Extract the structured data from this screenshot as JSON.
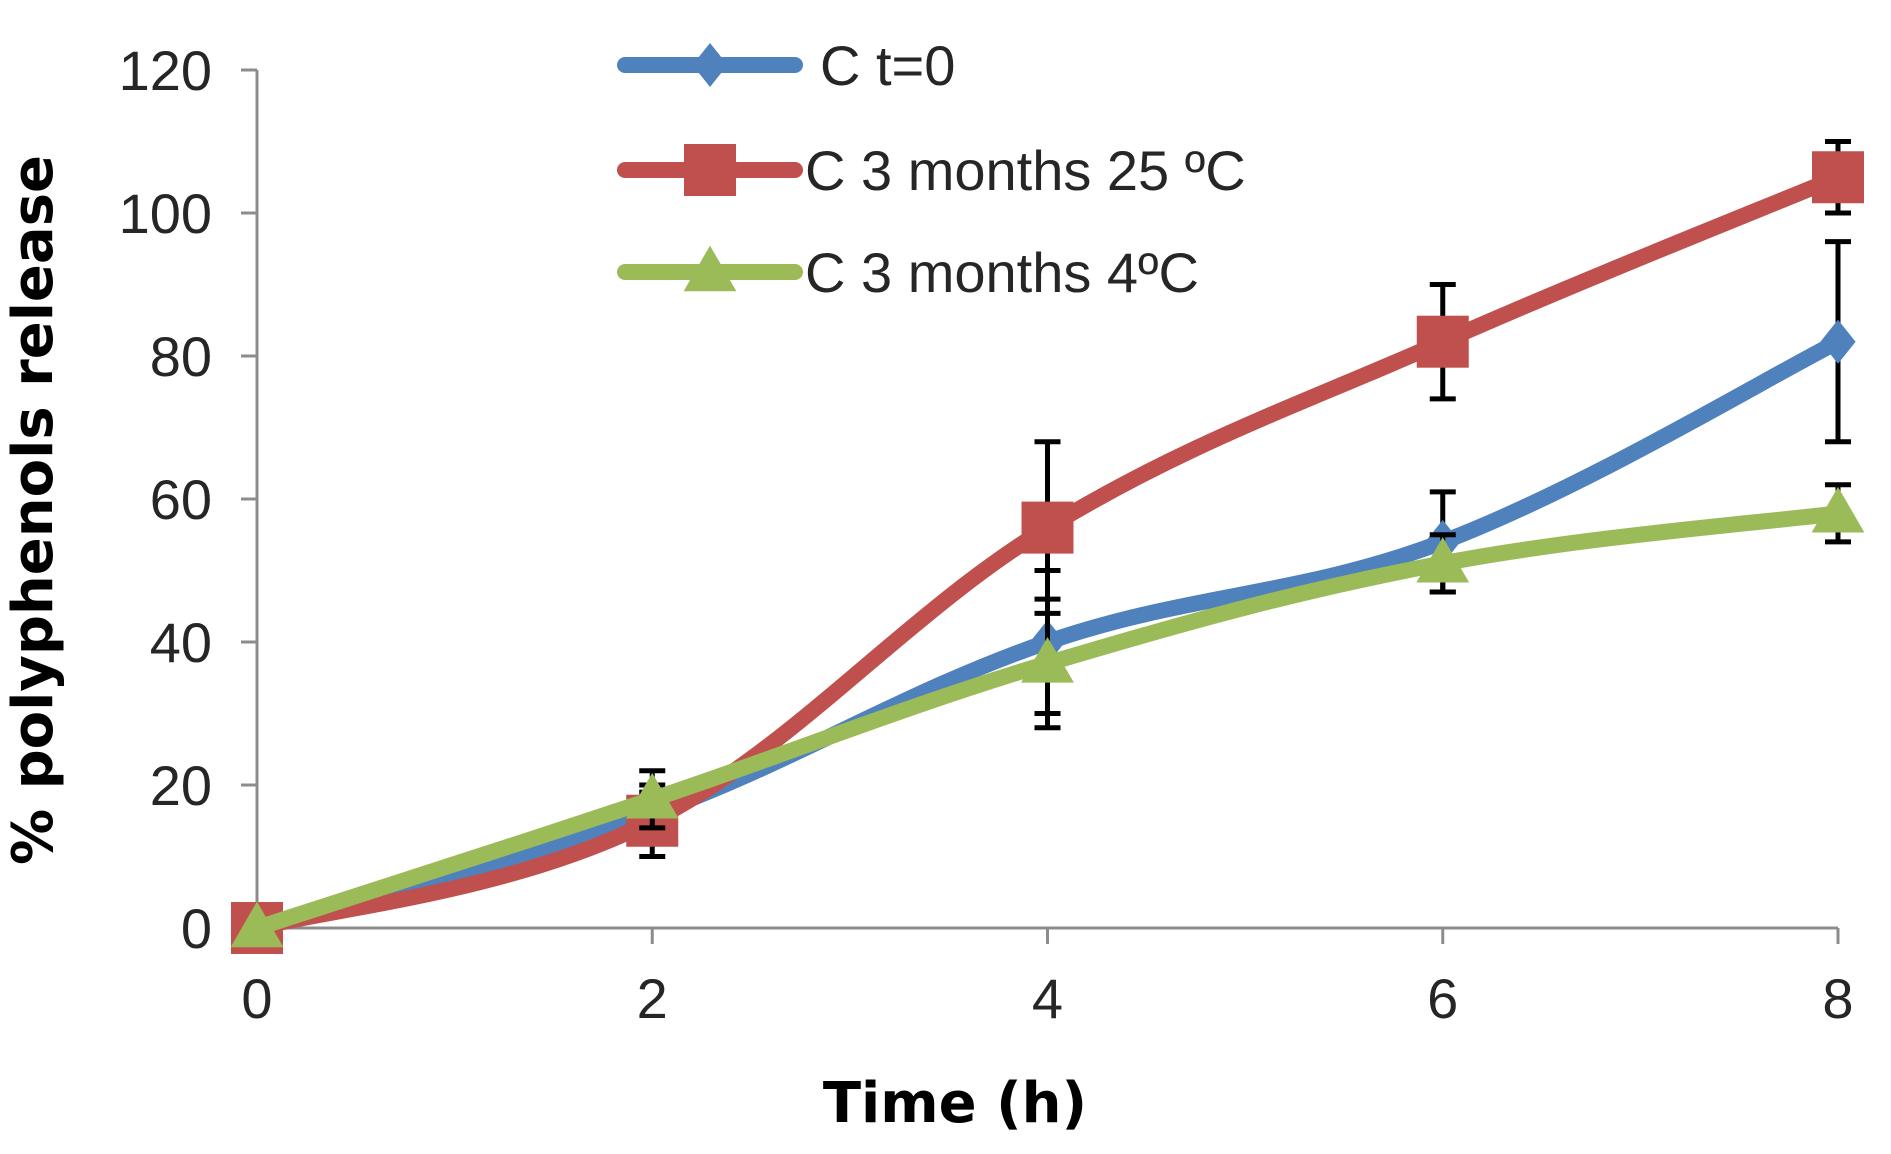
{
  "chart_data": {
    "type": "line",
    "xlabel": "Time (h)",
    "ylabel": "% polyphenols release",
    "xlim": [
      0,
      8
    ],
    "ylim": [
      0,
      120
    ],
    "x_ticks": [
      "0",
      "2",
      "4",
      "6",
      "8"
    ],
    "y_ticks": [
      "0",
      "20",
      "40",
      "60",
      "80",
      "100",
      "120"
    ],
    "grid": false,
    "legend_position": "top-center",
    "x": [
      0,
      2,
      4,
      6,
      8
    ],
    "series": [
      {
        "name": "C t=0",
        "color": "#4f81bd",
        "marker": "diamond",
        "values": [
          0,
          16,
          40,
          54,
          82
        ],
        "errors": [
          0,
          3,
          10,
          7,
          14
        ]
      },
      {
        "name": "C 3 months 25 ºC",
        "color": "#c0504d",
        "marker": "square",
        "values": [
          0,
          15,
          56,
          82,
          105
        ],
        "errors": [
          0,
          5,
          12,
          8,
          5
        ]
      },
      {
        "name": "C 3 months 4ºC",
        "color": "#9bbb59",
        "marker": "triangle",
        "values": [
          0,
          18,
          37,
          51,
          58
        ],
        "errors": [
          0,
          4,
          9,
          4,
          4
        ]
      }
    ]
  }
}
